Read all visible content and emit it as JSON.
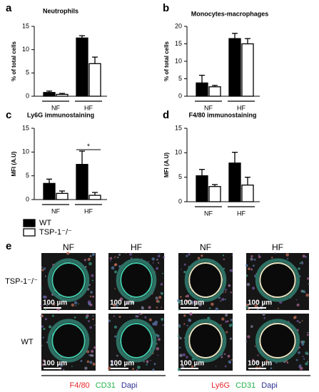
{
  "chart_data": [
    {
      "type": "bar",
      "label": "a",
      "title": "Neutrophils",
      "y_label": "% of total cells",
      "categories": [
        "NF",
        "HF"
      ],
      "ylim": [
        0,
        15
      ],
      "yticks": [
        0,
        5,
        10,
        15
      ],
      "series": [
        {
          "color": "#000000",
          "values": [
            0.8,
            12.5
          ],
          "errors": [
            0.3,
            0.5
          ]
        },
        {
          "color": "#ffffff",
          "values": [
            0.4,
            7
          ],
          "errors": [
            0.2,
            1.4
          ]
        }
      ]
    },
    {
      "type": "bar",
      "label": "b",
      "title": "Monocytes-macrophages",
      "y_label": "% of total cells",
      "categories": [
        "NF",
        "HF"
      ],
      "ylim": [
        0,
        20
      ],
      "yticks": [
        0,
        5,
        10,
        15,
        20
      ],
      "series": [
        {
          "color": "#000000",
          "values": [
            3.8,
            16.5
          ],
          "errors": [
            2.2,
            1.5
          ]
        },
        {
          "color": "#ffffff",
          "values": [
            2.7,
            15
          ],
          "errors": [
            0.4,
            1.5
          ]
        }
      ]
    },
    {
      "type": "bar",
      "label": "c",
      "title": "Ly6G immunostaining",
      "y_label": "MFI (A.U)",
      "categories": [
        "NF",
        "HF"
      ],
      "ylim": [
        0,
        15
      ],
      "yticks": [
        0,
        5,
        10,
        15
      ],
      "annotation": "*",
      "series": [
        {
          "name": "WT",
          "color": "#000000",
          "values": [
            3.4,
            7.4
          ],
          "errors": [
            0.9,
            2.8
          ]
        },
        {
          "name": "TSP-1⁻/⁻",
          "color": "#ffffff",
          "values": [
            1.3,
            0.9
          ],
          "errors": [
            0.5,
            0.6
          ]
        }
      ]
    },
    {
      "type": "bar",
      "label": "d",
      "title": "F4/80 immunostaining",
      "y_label": "MFI (A.U)",
      "categories": [
        "NF",
        "HF"
      ],
      "ylim": [
        0,
        15
      ],
      "yticks": [
        0,
        5,
        10,
        15
      ],
      "series": [
        {
          "color": "#000000",
          "values": [
            5.3,
            7.9
          ],
          "errors": [
            1.3,
            2.2
          ]
        },
        {
          "color": "#ffffff",
          "values": [
            3.1,
            3.4
          ],
          "errors": [
            0.4,
            1.6
          ]
        }
      ]
    }
  ],
  "panel_e": {
    "label": "e",
    "columns": [
      "NF",
      "HF",
      "NF",
      "HF"
    ],
    "rows": [
      "TSP-1⁻/⁻",
      "WT"
    ],
    "scale_bar": "100 µm",
    "stains": [
      [
        {
          "text": "F4/80",
          "color": "#e8262a"
        },
        {
          "text": "CD31",
          "color": "#22b24c"
        },
        {
          "text": "Dapi",
          "color": "#2e3192"
        }
      ],
      [
        {
          "text": "Ly6G",
          "color": "#e8262a"
        },
        {
          "text": "CD31",
          "color": "#22b24c"
        },
        {
          "text": "Dapi",
          "color": "#2e3192"
        }
      ]
    ]
  }
}
